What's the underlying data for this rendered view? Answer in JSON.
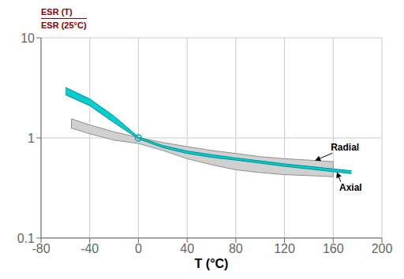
{
  "chart_data": {
    "type": "area",
    "title": "ESR (T)",
    "subtitle": "ESR (25°C)",
    "title_color": "#8B0000",
    "xlabel": "T (°C)",
    "log": "y",
    "grid": true,
    "xlim": [
      -80,
      200
    ],
    "ylim": [
      0.1,
      10
    ],
    "xticks": [
      -80,
      -40,
      0,
      40,
      80,
      120,
      160,
      200
    ],
    "yticks": [
      0.1,
      1,
      10
    ],
    "series": [
      {
        "name": "Radial",
        "color": "#D0D0D0",
        "edge_color": "#909090",
        "x": [
          -55,
          -55,
          -40,
          -20,
          0,
          20,
          40,
          60,
          80,
          100,
          120,
          140,
          160,
          160
        ],
        "upper": [
          1.55,
          1.55,
          1.35,
          1.15,
          1.01,
          0.9,
          0.82,
          0.75,
          0.7,
          0.65,
          0.62,
          0.6,
          0.58,
          0.58
        ],
        "lower": [
          1.55,
          1.25,
          1.1,
          0.95,
          0.88,
          0.75,
          0.62,
          0.54,
          0.48,
          0.45,
          0.43,
          0.42,
          0.41,
          0.58
        ]
      },
      {
        "name": "Axial",
        "color": "#00CED1",
        "edge_color": "#009090",
        "x": [
          -60,
          -40,
          -20,
          0,
          20,
          40,
          60,
          80,
          100,
          120,
          140,
          160,
          175
        ],
        "upper": [
          3.2,
          2.45,
          1.65,
          1.02,
          0.84,
          0.74,
          0.68,
          0.63,
          0.59,
          0.55,
          0.52,
          0.49,
          0.47
        ],
        "lower": [
          2.7,
          2.1,
          1.42,
          0.98,
          0.8,
          0.7,
          0.64,
          0.6,
          0.56,
          0.52,
          0.49,
          0.46,
          0.44
        ]
      }
    ],
    "convergence": {
      "x": 0,
      "y": 1.0,
      "color": "#00AAAA",
      "marker": "circle"
    },
    "annotations": [
      {
        "text": "Radial",
        "x": 158,
        "y": 0.8,
        "arrow_x": 145,
        "arrow_y": 0.595
      },
      {
        "text": "Axial",
        "x": 165,
        "y": 0.32,
        "arrow_x": 163,
        "arrow_y": 0.455
      }
    ]
  }
}
